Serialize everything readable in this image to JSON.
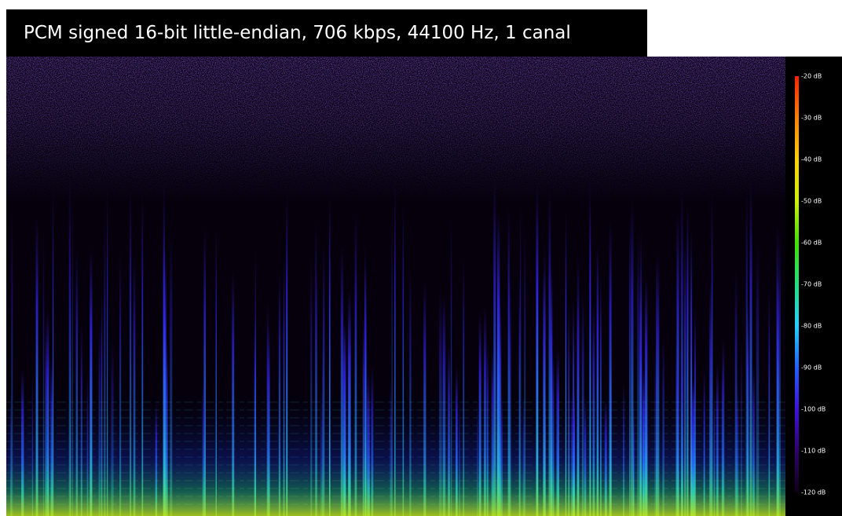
{
  "header": {
    "title": "PCM signed 16-bit little-endian, 706 kbps, 44100 Hz, 1 canal"
  },
  "colorbar": {
    "ticks": [
      "-20 dB",
      "-30 dB",
      "-40 dB",
      "-50 dB",
      "-60 dB",
      "-70 dB",
      "-80 dB",
      "-90 dB",
      "-100 dB",
      "-110 dB",
      "-120 dB"
    ]
  }
}
